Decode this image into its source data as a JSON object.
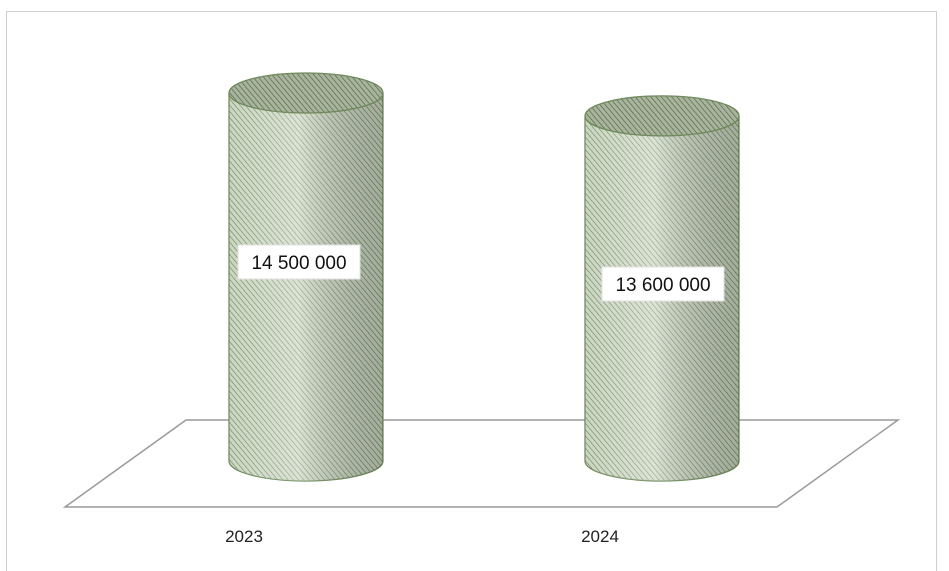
{
  "chart_data": {
    "type": "bar",
    "style": "3d-cylinder",
    "categories": [
      "2023",
      "2024"
    ],
    "values": [
      14500000,
      13600000
    ],
    "data_labels": [
      "14 500 000",
      "13 600 000"
    ],
    "title": "",
    "xlabel": "",
    "ylabel": "",
    "grid": false,
    "legend": "none",
    "colors": {
      "fill": "#c3d0b7",
      "hatch": "#5b6e4f",
      "outline": "#6f8a5d",
      "floor": "#9a9a9a"
    }
  }
}
